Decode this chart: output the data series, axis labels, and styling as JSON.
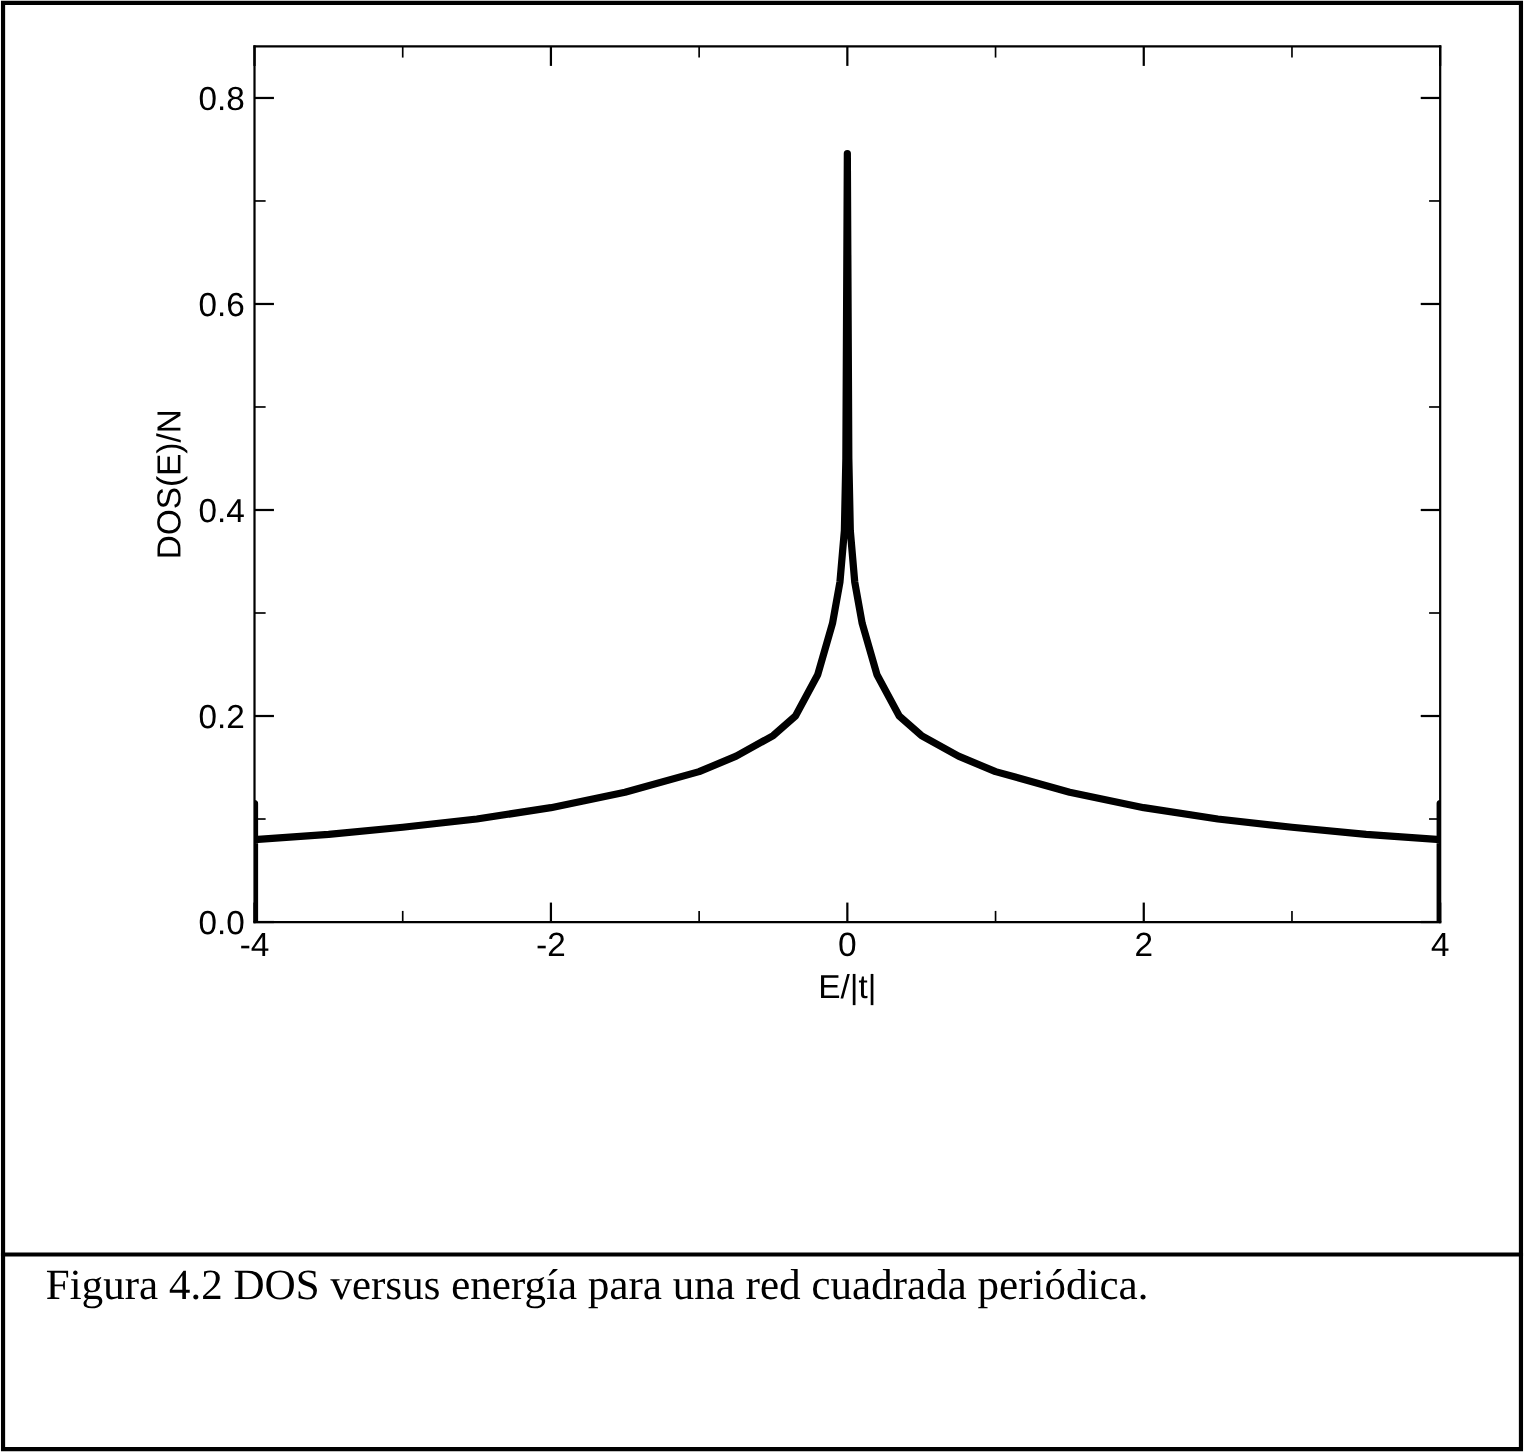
{
  "chart_data": {
    "type": "line",
    "xlabel": "E/|t|",
    "ylabel": "DOS(E)/N",
    "annotations": [
      "Figura 4.2 DOS versus energía para una red cuadrada periódica."
    ],
    "series": [
      {
        "color": "#000000",
        "x": [
          -4,
          -4,
          -4,
          -3.5,
          -3,
          -2.5,
          -2,
          -1.5,
          -1,
          -0.75,
          -0.5,
          -0.35,
          -0.2,
          -0.1,
          -0.05,
          -0.02,
          -0.01,
          0,
          0.01,
          0.02,
          0.05,
          0.1,
          0.2,
          0.35,
          0.5,
          0.75,
          1,
          1.5,
          2,
          2.5,
          3,
          3.5,
          4,
          4,
          4
        ],
        "values": [
          0,
          0.115,
          0.08,
          0.085,
          0.092,
          0.1,
          0.111,
          0.126,
          0.146,
          0.161,
          0.181,
          0.2,
          0.24,
          0.29,
          0.33,
          0.38,
          0.45,
          0.746,
          0.45,
          0.38,
          0.33,
          0.29,
          0.24,
          0.2,
          0.181,
          0.161,
          0.146,
          0.126,
          0.111,
          0.1,
          0.092,
          0.085,
          0.08,
          0.115,
          0
        ]
      }
    ],
    "xlim": [
      -4,
      4
    ],
    "xticks": [
      -4,
      -2,
      0,
      2,
      4
    ],
    "ylim": [
      0,
      0.85
    ],
    "yticks": [
      {
        "value": 0,
        "label": "0.0"
      },
      0.2,
      0.4,
      0.6,
      0.8
    ],
    "grid": false,
    "legend": false,
    "marker": "none",
    "line_style": "solid"
  }
}
